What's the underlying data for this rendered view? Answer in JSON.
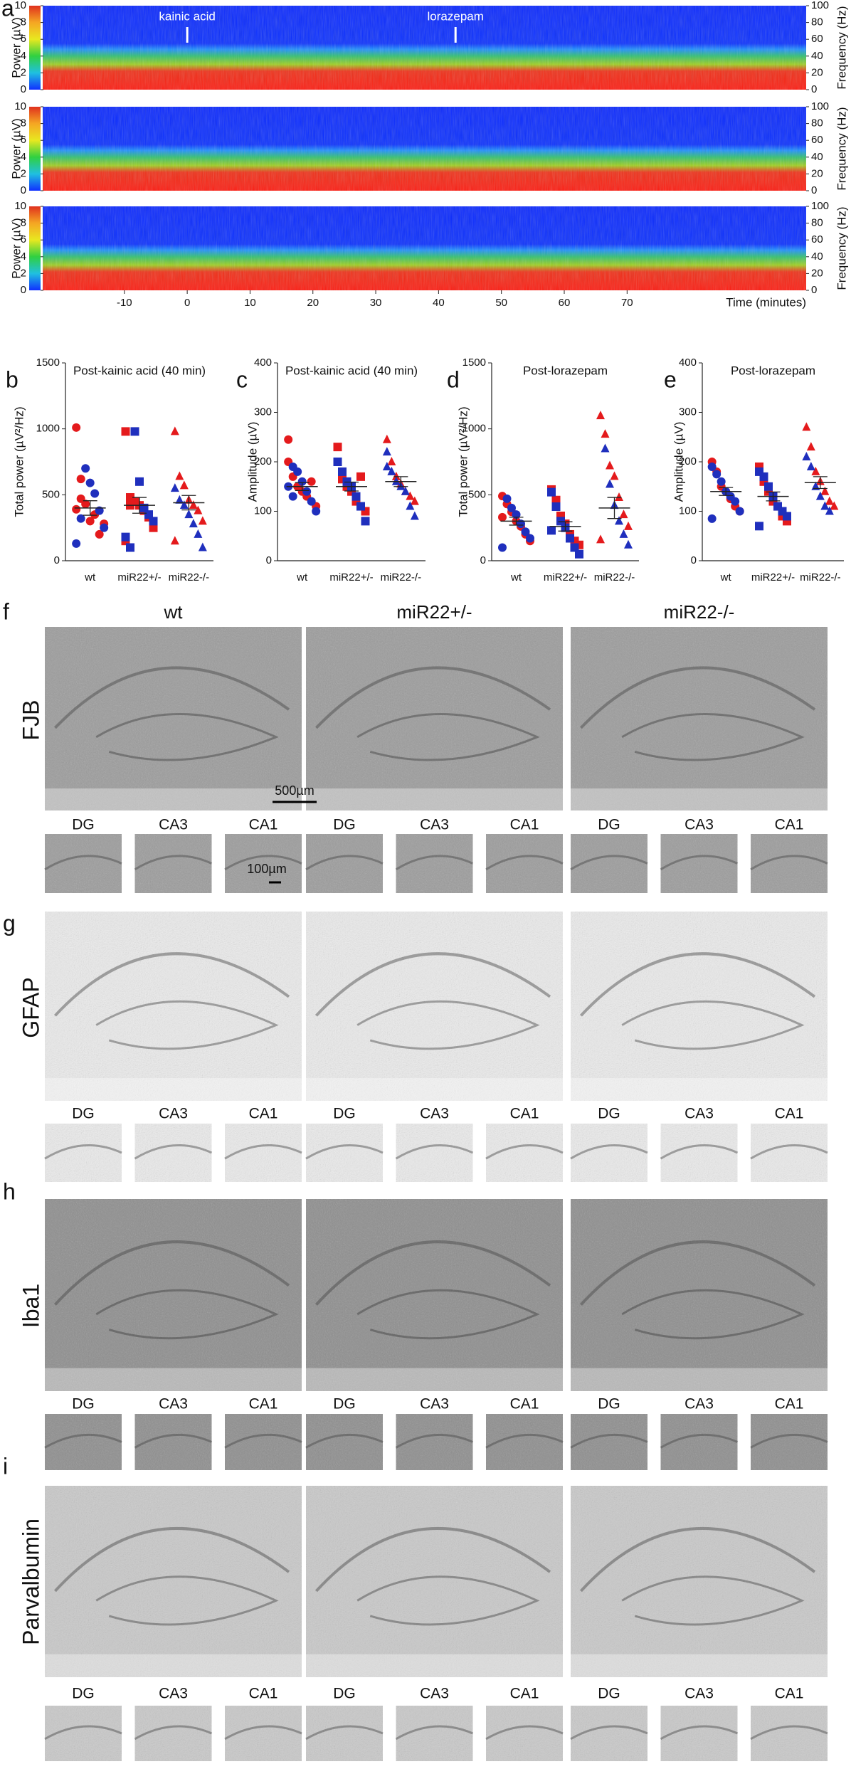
{
  "spectrogram": {
    "letter": "a",
    "y_label": "Power (µV)",
    "y2_label": "Frequency (Hz)",
    "x_label": "Time (minutes)",
    "xlim": [
      -23,
      98.5
    ],
    "xticks": [
      -10,
      0,
      10,
      20,
      30,
      40,
      50,
      60,
      70
    ],
    "ylim": [
      0,
      10
    ],
    "yticks": [
      0,
      2,
      4,
      6,
      8,
      10
    ],
    "y2lim": [
      0,
      100
    ],
    "y2ticks": [
      0,
      20,
      40,
      60,
      80,
      100
    ],
    "annotations": [
      {
        "text": "kainic acid",
        "x": 0
      },
      {
        "text": "lorazepam",
        "x": 42.7
      }
    ]
  },
  "chart_data": [
    {
      "type": "strip",
      "letter": "b",
      "title": "Post-kainic acid (40 min)",
      "y_label": "Total power (µV²/Hz)",
      "categories": [
        "wt",
        "miR22+/-",
        "miR22-/-"
      ],
      "ylim": [
        0,
        1500
      ],
      "yticks": [
        0,
        500,
        1000,
        1500
      ],
      "groups": [
        {
          "marker": "circle",
          "mean": 400,
          "sem": 55,
          "sets": [
            {
              "color": "#e41a1c",
              "values": [
                1010,
                620,
                430,
                300,
                350,
                200,
                280,
                390,
                470
              ]
            },
            {
              "color": "#1f2fbd",
              "values": [
                700,
                590,
                510,
                380,
                250,
                130,
                320
              ]
            }
          ]
        },
        {
          "marker": "square",
          "mean": 420,
          "sem": 60,
          "sets": [
            {
              "color": "#e41a1c",
              "values": [
                980,
                480,
                450,
                420,
                380,
                330,
                250,
                150,
                420
              ]
            },
            {
              "color": "#1f2fbd",
              "values": [
                980,
                600,
                400,
                350,
                300,
                180,
                100
              ]
            }
          ]
        },
        {
          "marker": "triangle",
          "mean": 440,
          "sem": 55,
          "sets": [
            {
              "color": "#e41a1c",
              "values": [
                980,
                640,
                570,
                460,
                420,
                380,
                300,
                150
              ]
            },
            {
              "color": "#1f2fbd",
              "values": [
                460,
                420,
                350,
                280,
                200,
                100,
                550
              ]
            }
          ]
        }
      ]
    },
    {
      "type": "strip",
      "letter": "c",
      "title": "Post-kainic acid (40 min)",
      "y_label": "Amplitude (µV)",
      "categories": [
        "wt",
        "miR22+/-",
        "miR22-/-"
      ],
      "ylim": [
        0,
        400
      ],
      "yticks": [
        0,
        100,
        200,
        300,
        400
      ],
      "groups": [
        {
          "marker": "circle",
          "mean": 150,
          "sem": 8,
          "sets": [
            {
              "color": "#e41a1c",
              "values": [
                245,
                170,
                150,
                140,
                130,
                160,
                110,
                200
              ]
            },
            {
              "color": "#1f2fbd",
              "values": [
                190,
                180,
                160,
                140,
                120,
                100,
                150,
                130
              ]
            }
          ]
        },
        {
          "marker": "square",
          "mean": 150,
          "sem": 9,
          "sets": [
            {
              "color": "#e41a1c",
              "values": [
                230,
                165,
                150,
                140,
                120,
                170,
                100
              ]
            },
            {
              "color": "#1f2fbd",
              "values": [
                200,
                180,
                160,
                150,
                130,
                110,
                80
              ]
            }
          ]
        },
        {
          "marker": "triangle",
          "mean": 160,
          "sem": 10,
          "sets": [
            {
              "color": "#e41a1c",
              "values": [
                245,
                200,
                170,
                155,
                140,
                130,
                120
              ]
            },
            {
              "color": "#1f2fbd",
              "values": [
                220,
                180,
                160,
                150,
                140,
                110,
                90,
                190
              ]
            }
          ]
        }
      ]
    },
    {
      "type": "strip",
      "letter": "d",
      "title": "Post-lorazepam",
      "y_label": "Total power (µV²/Hz)",
      "categories": [
        "wt",
        "miR22+/-",
        "miR22-/-"
      ],
      "ylim": [
        0,
        1500
      ],
      "yticks": [
        0,
        500,
        1000,
        1500
      ],
      "groups": [
        {
          "marker": "circle",
          "mean": 300,
          "sem": 30,
          "sets": [
            {
              "color": "#e41a1c",
              "values": [
                490,
                430,
                370,
                300,
                260,
                200,
                150,
                330
              ]
            },
            {
              "color": "#1f2fbd",
              "values": [
                470,
                400,
                350,
                280,
                220,
                170,
                100
              ]
            }
          ]
        },
        {
          "marker": "square",
          "mean": 260,
          "sem": 35,
          "sets": [
            {
              "color": "#e41a1c",
              "values": [
                540,
                460,
                340,
                280,
                200,
                150,
                120
              ]
            },
            {
              "color": "#1f2fbd",
              "values": [
                520,
                410,
                300,
                250,
                170,
                100,
                50,
                230
              ]
            }
          ]
        },
        {
          "marker": "triangle",
          "mean": 400,
          "sem": 80,
          "sets": [
            {
              "color": "#e41a1c",
              "values": [
                1100,
                960,
                720,
                640,
                480,
                350,
                260,
                160
              ]
            },
            {
              "color": "#1f2fbd",
              "values": [
                850,
                580,
                420,
                300,
                200,
                120
              ]
            }
          ]
        }
      ]
    },
    {
      "type": "strip",
      "letter": "e",
      "title": "Post-lorazepam",
      "y_label": "Amplitude (µV)",
      "categories": [
        "wt",
        "miR22+/-",
        "miR22-/-"
      ],
      "ylim": [
        0,
        400
      ],
      "yticks": [
        0,
        100,
        200,
        300,
        400
      ],
      "groups": [
        {
          "marker": "circle",
          "mean": 140,
          "sem": 8,
          "sets": [
            {
              "color": "#e41a1c",
              "values": [
                200,
                180,
                150,
                140,
                125,
                110,
                100
              ]
            },
            {
              "color": "#1f2fbd",
              "values": [
                190,
                175,
                160,
                140,
                130,
                120,
                100,
                85
              ]
            }
          ]
        },
        {
          "marker": "square",
          "mean": 130,
          "sem": 9,
          "sets": [
            {
              "color": "#e41a1c",
              "values": [
                190,
                160,
                140,
                120,
                110,
                90,
                80
              ]
            },
            {
              "color": "#1f2fbd",
              "values": [
                180,
                170,
                150,
                130,
                110,
                100,
                90,
                70
              ]
            }
          ]
        },
        {
          "marker": "triangle",
          "mean": 158,
          "sem": 12,
          "sets": [
            {
              "color": "#e41a1c",
              "values": [
                270,
                230,
                180,
                160,
                140,
                120,
                110
              ]
            },
            {
              "color": "#1f2fbd",
              "values": [
                210,
                190,
                150,
                130,
                110,
                100
              ]
            }
          ]
        }
      ]
    }
  ],
  "histology": {
    "columns": [
      "wt",
      "miR22+/-",
      "miR22-/-"
    ],
    "regions": [
      "DG",
      "CA3",
      "CA1"
    ],
    "scale_bars": [
      "500µm",
      "100µm"
    ],
    "rows": [
      {
        "letter": "f",
        "stain": "FJB"
      },
      {
        "letter": "g",
        "stain": "GFAP"
      },
      {
        "letter": "h",
        "stain": "Iba1"
      },
      {
        "letter": "i",
        "stain": "Parvalbumin"
      }
    ]
  }
}
